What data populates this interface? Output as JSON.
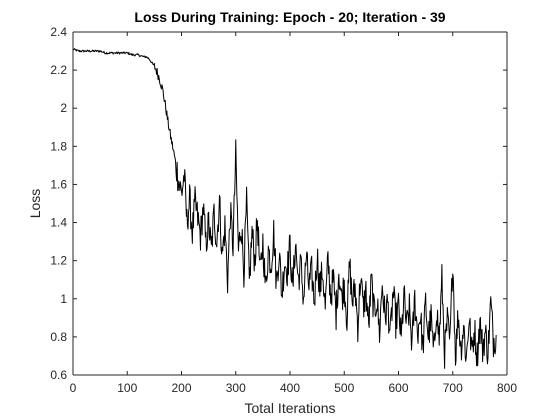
{
  "chart_data": {
    "type": "line",
    "title": "Loss During Training: Epoch - 20; Iteration - 39",
    "xlabel": "Total Iterations",
    "ylabel": "Loss",
    "xlim": [
      0,
      800
    ],
    "ylim": [
      0.6,
      2.4
    ],
    "x_ticks": [
      0,
      100,
      200,
      300,
      400,
      500,
      600,
      700,
      800
    ],
    "y_ticks": [
      0.6,
      0.8,
      1,
      1.2,
      1.4,
      1.6,
      1.8,
      2,
      2.2,
      2.4
    ],
    "x_tick_labels": [
      "0",
      "100",
      "200",
      "300",
      "400",
      "500",
      "600",
      "700",
      "800"
    ],
    "y_tick_labels": [
      "0.6",
      "0.8",
      "1",
      "1.2",
      "1.4",
      "1.6",
      "1.8",
      "2",
      "2.2",
      "2.4"
    ],
    "grid": false,
    "line_color": "#000000",
    "series": [
      {
        "x": [
          0,
          10,
          20,
          30,
          40,
          50,
          60,
          70,
          80,
          90,
          100,
          110,
          120,
          130,
          135,
          140,
          145,
          150,
          155,
          160,
          165,
          170,
          175,
          180,
          185,
          190,
          195,
          200,
          205,
          210,
          215,
          220,
          225,
          230,
          235,
          240,
          245,
          250,
          255,
          260,
          265,
          270,
          275,
          280,
          285,
          290,
          295,
          300,
          305,
          310,
          315,
          320,
          325,
          330,
          335,
          340,
          345,
          350,
          355,
          360,
          365,
          370,
          375,
          380,
          385,
          390,
          395,
          400,
          405,
          410,
          415,
          420,
          425,
          430,
          435,
          440,
          445,
          450,
          455,
          460,
          465,
          470,
          475,
          480,
          485,
          490,
          495,
          500,
          505,
          510,
          515,
          520,
          525,
          530,
          535,
          540,
          545,
          550,
          555,
          560,
          565,
          570,
          575,
          580,
          585,
          590,
          595,
          600,
          605,
          610,
          615,
          620,
          625,
          630,
          635,
          640,
          645,
          650,
          655,
          660,
          665,
          670,
          675,
          680,
          685,
          690,
          695,
          700,
          705,
          710,
          715,
          720,
          725,
          730,
          735,
          740,
          745,
          750,
          755,
          760,
          765,
          770,
          775,
          780
        ],
        "y": [
          2.31,
          2.3,
          2.3,
          2.3,
          2.3,
          2.3,
          2.29,
          2.29,
          2.29,
          2.29,
          2.29,
          2.28,
          2.28,
          2.27,
          2.27,
          2.26,
          2.24,
          2.22,
          2.19,
          2.15,
          2.1,
          2.02,
          1.93,
          1.85,
          1.78,
          1.7,
          1.62,
          1.55,
          1.65,
          1.4,
          1.52,
          1.35,
          1.5,
          1.42,
          1.33,
          1.48,
          1.28,
          1.4,
          1.25,
          1.45,
          1.3,
          1.52,
          1.22,
          1.38,
          1.1,
          1.45,
          1.28,
          1.75,
          1.25,
          1.4,
          1.15,
          1.5,
          1.08,
          1.35,
          1.2,
          1.42,
          1.12,
          1.3,
          1.05,
          1.26,
          1.18,
          1.35,
          1.08,
          1.25,
          1.02,
          1.2,
          1.15,
          1.28,
          1.04,
          1.3,
          1.1,
          1.18,
          1.0,
          1.22,
          1.06,
          1.14,
          0.98,
          1.24,
          1.05,
          1.15,
          0.95,
          1.2,
          1.02,
          1.1,
          0.92,
          1.15,
          1.0,
          1.08,
          0.9,
          1.18,
          0.98,
          1.06,
          0.86,
          1.12,
          0.95,
          1.04,
          0.85,
          1.1,
          0.92,
          1.0,
          0.82,
          1.08,
          0.9,
          0.98,
          0.8,
          1.04,
          0.88,
          0.96,
          0.78,
          1.02,
          0.85,
          0.94,
          0.76,
          1.0,
          0.82,
          0.92,
          0.74,
          0.98,
          0.8,
          0.9,
          0.7,
          0.96,
          0.78,
          1.1,
          0.72,
          0.88,
          0.76,
          1.22,
          0.7,
          0.92,
          0.74,
          0.86,
          0.68,
          0.9,
          0.72,
          0.84,
          0.7,
          0.88,
          0.74,
          0.82,
          0.72,
          0.98,
          0.78,
          0.81
        ]
      }
    ]
  }
}
